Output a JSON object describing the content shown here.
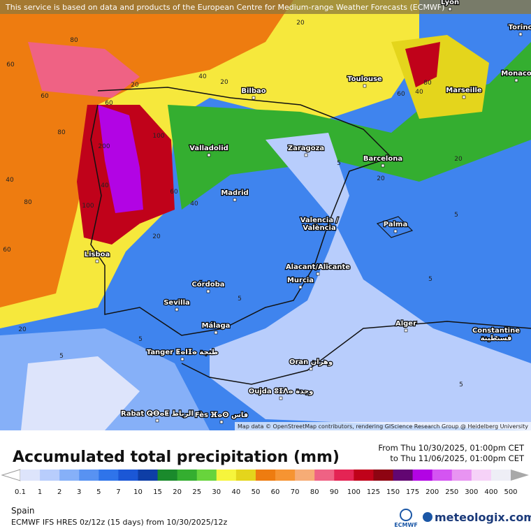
{
  "banner": "This service is based on data and products of the European Centre for Medium-range Weather Forecasts (ECMWF)",
  "attribution": "Map data © OpenStreetMap contributors, rendering GIScience Research Group @ Heidelberg University",
  "cities": [
    "Lyon",
    "Torino",
    "Monaco",
    "Toulouse",
    "Marseille",
    "Bilbao",
    "Zaragoza",
    "Barcelona",
    "Valladolid",
    "Madrid",
    [
      "Valencia /",
      "València"
    ],
    "Palma",
    "Lisboa",
    "Alacant/Alicante",
    "Murcia",
    "Córdoba",
    "Sevilla",
    "Málaga",
    "Alger",
    [
      "Constantine",
      "قسنطينة"
    ],
    "Tanger ⵟⴰⵏⵊⴰ طنجة",
    "Oran وهران",
    "Oujda ⵓⵊⴷⴰ وجدة",
    "Rabat ⵕⴱⴰⵟ الرباط",
    "Fès ⴼⴰⵙ فاس"
  ],
  "contour_labels": [
    "80",
    "60",
    "40",
    "60",
    "80",
    "40",
    "20",
    "20",
    "60",
    "200",
    "100",
    "60",
    "40",
    "20",
    "100",
    "80",
    "40",
    "60",
    "20",
    "5",
    "5",
    "5",
    "20",
    "40",
    "60",
    "80",
    "5",
    "20",
    "20",
    "5",
    "5",
    "5"
  ],
  "legend": {
    "title": "Accumulated total precipitation (mm)",
    "from": "From Thu 10/30/2025, 01:00pm CET",
    "to": "to Thu 11/06/2025, 01:00pm CET",
    "labels": [
      "0.1",
      "1",
      "2",
      "3",
      "5",
      "7",
      "10",
      "15",
      "20",
      "25",
      "30",
      "40",
      "50",
      "60",
      "70",
      "80",
      "90",
      "100",
      "125",
      "150",
      "175",
      "200",
      "250",
      "300",
      "400",
      "500"
    ],
    "colors": [
      "#dde4fb",
      "#b8cdfc",
      "#86b0f8",
      "#5892f2",
      "#2f74ea",
      "#1b57d6",
      "#0e3ea6",
      "#1a8a2c",
      "#34ae30",
      "#68d43c",
      "#f6f53c",
      "#e4d51c",
      "#ee7c10",
      "#f69432",
      "#f6ac76",
      "#ef6284",
      "#e42454",
      "#c0021a",
      "#8e0412",
      "#620672",
      "#b204e4",
      "#d454f2",
      "#e894f2",
      "#f6d2f8",
      "#eeeef6"
    ],
    "under_color": "#ffffff",
    "over_color": "#a8a8a8"
  },
  "region": "Spain",
  "model": "ECMWF IFS HRES 0z/12z (15 days) from  10/30/2025/12z",
  "logos": {
    "ecmwf": "ECMWF",
    "meteologix": "meteologix.com"
  }
}
